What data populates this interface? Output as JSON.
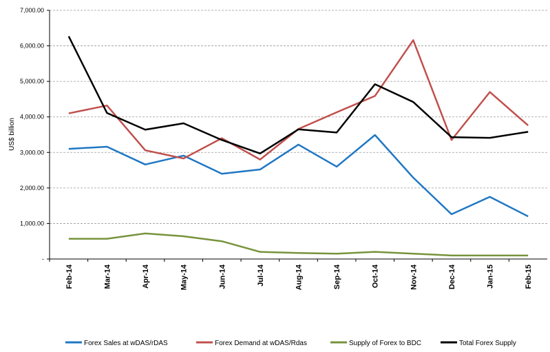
{
  "chart_data": {
    "type": "line",
    "y_label": "US$ billion",
    "categories": [
      "Feb-14",
      "Mar-14",
      "Apr-14",
      "May-14",
      "Jun-14",
      "Jul-14",
      "Aug-14",
      "Sep-14",
      "Oct-14",
      "Nov-14",
      "Dec-14",
      "Jan-15",
      "Feb-15"
    ],
    "series": [
      {
        "name": "Forex Sales at wDAS/rDAS",
        "color": "#1f77c4",
        "values": [
          3100,
          3160,
          2660,
          2910,
          2400,
          2520,
          3220,
          2600,
          3490,
          2290,
          1260,
          1750,
          1200
        ]
      },
      {
        "name": "Forex Demand at wDAS/Rdas",
        "color": "#c0504d",
        "values": [
          4100,
          4320,
          3060,
          2830,
          3400,
          2800,
          3660,
          4130,
          4590,
          6160,
          3350,
          4700,
          3760
        ]
      },
      {
        "name": "Supply of Forex to BDC",
        "color": "#77933c",
        "values": [
          570,
          570,
          720,
          640,
          500,
          200,
          170,
          150,
          200,
          150,
          100,
          100,
          100
        ]
      },
      {
        "name": "Total Forex Supply",
        "color": "#000000",
        "values": [
          6270,
          4110,
          3640,
          3820,
          3350,
          2970,
          3650,
          3560,
          4920,
          4420,
          3430,
          3410,
          3580
        ]
      }
    ],
    "ylim": [
      0,
      7000
    ],
    "yticks": [
      {
        "value": 0,
        "label": "-"
      },
      {
        "value": 1000,
        "label": "1,000.00"
      },
      {
        "value": 2000,
        "label": "2,000.00"
      },
      {
        "value": 3000,
        "label": "3,000.00"
      },
      {
        "value": 4000,
        "label": "4,000.00"
      },
      {
        "value": 5000,
        "label": "5,000.00"
      },
      {
        "value": 6000,
        "label": "6,000.00"
      },
      {
        "value": 7000,
        "label": "7,000.00"
      }
    ],
    "grid": true
  }
}
